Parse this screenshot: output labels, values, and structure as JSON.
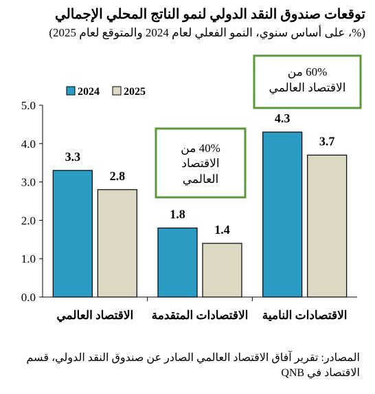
{
  "header": {
    "title": "توقعات صندوق النقد الدولي لنمو الناتج المحلي الإجمالي",
    "subtitle": "(%، على أساس سنوي، النمو الفعلي لعام 2024 والمتوقع لعام 2025)"
  },
  "source": "المصادر: تقرير آفاق الاقتصاد العالمي الصادر عن صندوق النقد الدولي، قسم الاقتصاد في QNB",
  "chart_data": {
    "type": "bar",
    "title": "توقعات صندوق النقد الدولي لنمو الناتج المحلي الإجمالي",
    "categories": [
      "الاقتصاد العالمي",
      "الاقتصادات المتقدمة",
      "الاقتصادات النامية"
    ],
    "series": [
      {
        "name": "2024",
        "values": [
          3.3,
          1.8,
          4.3
        ],
        "color": "#2b9cc4"
      },
      {
        "name": "2025",
        "values": [
          2.8,
          1.4,
          3.7
        ],
        "color": "#ddd8c4"
      }
    ],
    "ylim": [
      0,
      5
    ],
    "yticks": [
      "0.0",
      "1.0",
      "2.0",
      "3.0",
      "4.0",
      "5.0"
    ],
    "xlabel": "",
    "ylabel": "",
    "grid": false,
    "legend": "top-left",
    "annotations": [
      {
        "category": "الاقتصادات المتقدمة",
        "lines": [
          "40% من",
          "الاقتصاد",
          "العالمي"
        ]
      },
      {
        "category": "الاقتصادات النامية",
        "lines": [
          "60% من",
          "الاقتصاد العالمي"
        ]
      }
    ]
  },
  "colors": {
    "annotation_border": "#5b9a3a",
    "bar_outline": "#000000"
  }
}
